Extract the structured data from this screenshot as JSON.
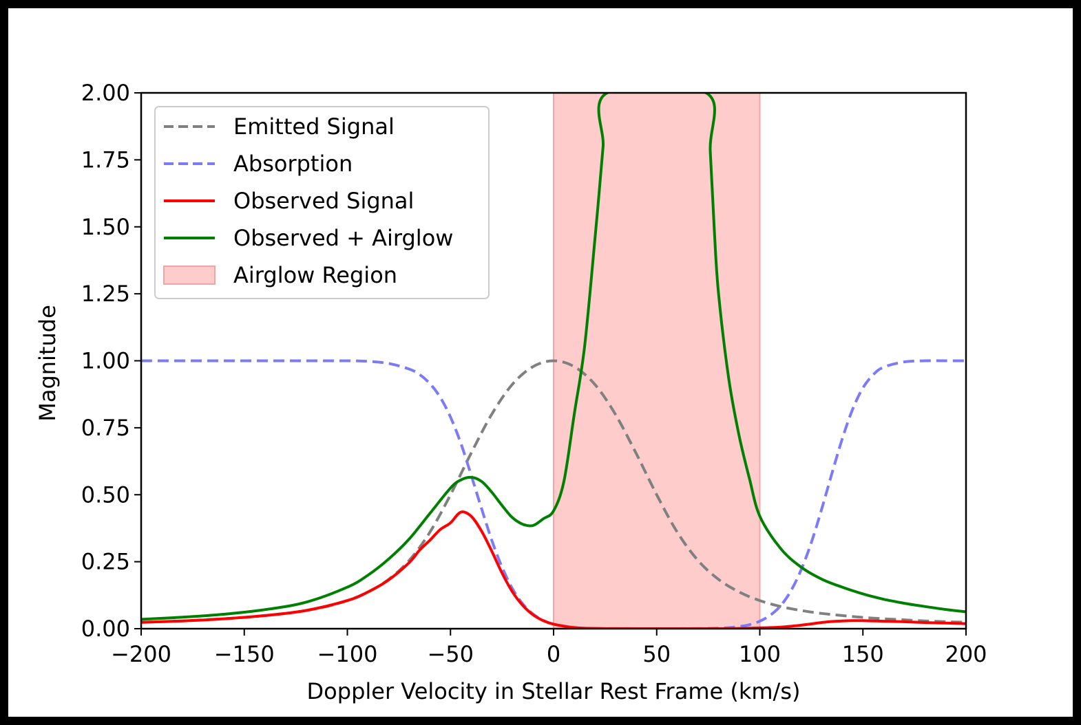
{
  "chart_data": {
    "type": "line",
    "title": "",
    "xlabel": "Doppler Velocity in Stellar Rest Frame (km/s)",
    "ylabel": "Magnitude",
    "xlim": [
      -200,
      200
    ],
    "ylim": [
      0,
      2
    ],
    "xticks": [
      -200,
      -150,
      -100,
      -50,
      0,
      50,
      100,
      150,
      200
    ],
    "xtick_labels": [
      "−200",
      "−150",
      "−100",
      "−50",
      "0",
      "50",
      "100",
      "150",
      "200"
    ],
    "yticks": [
      0,
      0.25,
      0.5,
      0.75,
      1.0,
      1.25,
      1.5,
      1.75,
      2.0
    ],
    "ytick_labels": [
      "0.00",
      "0.25",
      "0.50",
      "0.75",
      "1.00",
      "1.25",
      "1.50",
      "1.75",
      "2.00"
    ],
    "grid": false,
    "legend_position": "upper-left",
    "shaded_region": {
      "name": "Airglow Region",
      "x": [
        0,
        100
      ],
      "color": "#ffcccc",
      "edge_color": "#f5a3a3"
    },
    "series": [
      {
        "name": "Emitted Signal",
        "style": "dashed",
        "color": "#808080",
        "x": [
          -200,
          -190,
          -180,
          -170,
          -160,
          -150,
          -140,
          -130,
          -120,
          -110,
          -100,
          -90,
          -80,
          -70,
          -60,
          -50,
          -40,
          -30,
          -20,
          -10,
          0,
          10,
          20,
          30,
          40,
          50,
          60,
          70,
          80,
          90,
          100,
          110,
          120,
          130,
          140,
          150,
          160,
          170,
          180,
          190,
          200
        ],
        "y": [
          0.024,
          0.026,
          0.029,
          0.033,
          0.037,
          0.042,
          0.049,
          0.057,
          0.068,
          0.083,
          0.105,
          0.137,
          0.184,
          0.255,
          0.36,
          0.5,
          0.655,
          0.8,
          0.912,
          0.978,
          1.0,
          0.978,
          0.912,
          0.8,
          0.655,
          0.5,
          0.36,
          0.255,
          0.184,
          0.137,
          0.105,
          0.083,
          0.068,
          0.057,
          0.049,
          0.042,
          0.037,
          0.033,
          0.029,
          0.026,
          0.024
        ]
      },
      {
        "name": "Absorption",
        "style": "dashed",
        "color": "#7b7bf7",
        "x": [
          -200,
          -180,
          -160,
          -140,
          -120,
          -100,
          -90,
          -80,
          -70,
          -65,
          -60,
          -55,
          -50,
          -45,
          -40,
          -35,
          -30,
          -25,
          -20,
          -15,
          -10,
          -5,
          0,
          10,
          20,
          40,
          60,
          80,
          90,
          95,
          100,
          105,
          110,
          115,
          120,
          125,
          130,
          135,
          140,
          145,
          150,
          155,
          160,
          170,
          180,
          190,
          200
        ],
        "y": [
          1.0,
          1.0,
          1.0,
          1.0,
          1.0,
          1.0,
          0.998,
          0.99,
          0.969,
          0.949,
          0.915,
          0.864,
          0.79,
          0.693,
          0.574,
          0.45,
          0.331,
          0.23,
          0.15,
          0.093,
          0.055,
          0.031,
          0.017,
          0.004,
          0.001,
          0.0,
          0.0,
          0.002,
          0.008,
          0.015,
          0.028,
          0.05,
          0.085,
          0.14,
          0.219,
          0.322,
          0.446,
          0.58,
          0.709,
          0.819,
          0.899,
          0.948,
          0.976,
          0.996,
          1.0,
          1.0,
          1.0
        ]
      },
      {
        "name": "Observed Signal",
        "style": "solid",
        "color": "#ff0000",
        "x": [
          -200,
          -180,
          -160,
          -140,
          -120,
          -100,
          -90,
          -80,
          -70,
          -65,
          -60,
          -55,
          -50,
          -45,
          -40,
          -35,
          -30,
          -25,
          -20,
          -15,
          -10,
          -5,
          0,
          10,
          20,
          40,
          60,
          80,
          90,
          95,
          100,
          105,
          110,
          115,
          120,
          125,
          130,
          135,
          140,
          145,
          150,
          155,
          160,
          170,
          180,
          190,
          200
        ],
        "y": [
          0.024,
          0.029,
          0.037,
          0.049,
          0.068,
          0.105,
          0.137,
          0.182,
          0.247,
          0.293,
          0.33,
          0.37,
          0.395,
          0.435,
          0.42,
          0.365,
          0.29,
          0.208,
          0.138,
          0.087,
          0.052,
          0.03,
          0.017,
          0.004,
          0.001,
          0.0,
          0.0,
          0.0,
          0.001,
          0.002,
          0.003,
          0.004,
          0.006,
          0.009,
          0.013,
          0.018,
          0.023,
          0.027,
          0.029,
          0.03,
          0.03,
          0.029,
          0.028,
          0.026,
          0.023,
          0.021,
          0.019
        ]
      },
      {
        "name": "Observed + Airglow",
        "style": "solid",
        "color": "#008000",
        "x": [
          -200,
          -180,
          -160,
          -140,
          -120,
          -100,
          -90,
          -80,
          -70,
          -60,
          -50,
          -45,
          -40,
          -35,
          -30,
          -25,
          -20,
          -15,
          -10,
          -5,
          0,
          5,
          10,
          15,
          20,
          22,
          24,
          26,
          74,
          76,
          78,
          80,
          85,
          90,
          95,
          100,
          110,
          120,
          130,
          140,
          150,
          160,
          170,
          180,
          190,
          200
        ],
        "y": [
          0.035,
          0.043,
          0.054,
          0.071,
          0.099,
          0.155,
          0.2,
          0.26,
          0.335,
          0.43,
          0.525,
          0.555,
          0.565,
          0.55,
          0.51,
          0.46,
          0.415,
          0.39,
          0.385,
          0.41,
          0.44,
          0.55,
          0.8,
          1.05,
          1.45,
          1.62,
          1.8,
          2.0,
          2.0,
          1.78,
          1.48,
          1.25,
          0.93,
          0.72,
          0.56,
          0.42,
          0.3,
          0.23,
          0.185,
          0.155,
          0.13,
          0.11,
          0.095,
          0.083,
          0.072,
          0.063
        ]
      }
    ]
  }
}
